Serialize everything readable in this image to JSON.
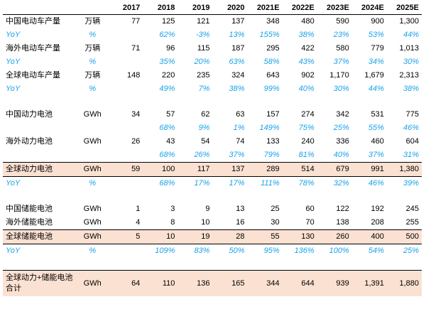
{
  "years": [
    "2017",
    "2018",
    "2019",
    "2020",
    "2021E",
    "2022E",
    "2023E",
    "2024E",
    "2025E"
  ],
  "rows": [
    {
      "type": "val",
      "name": "中国电动车产量",
      "unit": "万辆",
      "values": [
        "77",
        "125",
        "121",
        "137",
        "348",
        "480",
        "590",
        "900",
        "1,300"
      ]
    },
    {
      "type": "yoy",
      "name": "YoY",
      "unit": "%",
      "values": [
        "",
        "62%",
        "-3%",
        "13%",
        "155%",
        "38%",
        "23%",
        "53%",
        "44%"
      ]
    },
    {
      "type": "val",
      "name": "海外电动车产量",
      "unit": "万辆",
      "values": [
        "71",
        "96",
        "115",
        "187",
        "295",
        "422",
        "580",
        "779",
        "1,013"
      ]
    },
    {
      "type": "yoy",
      "name": "YoY",
      "unit": "%",
      "values": [
        "",
        "35%",
        "20%",
        "63%",
        "58%",
        "43%",
        "37%",
        "34%",
        "30%"
      ]
    },
    {
      "type": "val",
      "name": "全球电动车产量",
      "unit": "万辆",
      "values": [
        "148",
        "220",
        "235",
        "324",
        "643",
        "902",
        "1,170",
        "1,679",
        "2,313"
      ]
    },
    {
      "type": "yoy",
      "name": "YoY",
      "unit": "%",
      "values": [
        "",
        "49%",
        "7%",
        "38%",
        "99%",
        "40%",
        "30%",
        "44%",
        "38%"
      ]
    },
    {
      "type": "gap"
    },
    {
      "type": "val",
      "name": "中国动力电池",
      "unit": "GWh",
      "values": [
        "34",
        "57",
        "62",
        "63",
        "157",
        "274",
        "342",
        "531",
        "775"
      ]
    },
    {
      "type": "yoy",
      "name": "",
      "unit": "",
      "values": [
        "",
        "68%",
        "9%",
        "1%",
        "149%",
        "75%",
        "25%",
        "55%",
        "46%"
      ]
    },
    {
      "type": "val",
      "name": "海外动力电池",
      "unit": "GWh",
      "values": [
        "26",
        "43",
        "54",
        "74",
        "133",
        "240",
        "336",
        "460",
        "604"
      ]
    },
    {
      "type": "yoy",
      "name": "",
      "unit": "",
      "values": [
        "",
        "68%",
        "26%",
        "37%",
        "79%",
        "81%",
        "40%",
        "37%",
        "31%"
      ]
    },
    {
      "type": "val",
      "name": "全球动力电池",
      "unit": "GWh",
      "highlight": true,
      "values": [
        "59",
        "100",
        "117",
        "137",
        "289",
        "514",
        "679",
        "991",
        "1,380"
      ]
    },
    {
      "type": "yoy",
      "name": "YoY",
      "unit": "%",
      "values": [
        "",
        "68%",
        "17%",
        "17%",
        "111%",
        "78%",
        "32%",
        "46%",
        "39%"
      ]
    },
    {
      "type": "gap"
    },
    {
      "type": "val",
      "name": "中国储能电池",
      "unit": "GWh",
      "values": [
        "1",
        "3",
        "9",
        "13",
        "25",
        "60",
        "122",
        "192",
        "245"
      ]
    },
    {
      "type": "val",
      "name": "海外储能电池",
      "unit": "GWh",
      "values": [
        "4",
        "8",
        "10",
        "16",
        "30",
        "70",
        "138",
        "208",
        "255"
      ]
    },
    {
      "type": "val",
      "name": "全球储能电池",
      "unit": "GWh",
      "highlight": true,
      "values": [
        "5",
        "10",
        "19",
        "28",
        "55",
        "130",
        "260",
        "400",
        "500"
      ]
    },
    {
      "type": "yoy",
      "name": "YoY",
      "unit": "%",
      "values": [
        "",
        "109%",
        "83%",
        "50%",
        "95%",
        "136%",
        "100%",
        "54%",
        "25%"
      ]
    },
    {
      "type": "gap"
    },
    {
      "type": "double",
      "name": "全球动力+储能电池合计",
      "unit": "GWh",
      "highlight": true,
      "values": [
        "64",
        "110",
        "136",
        "165",
        "344",
        "644",
        "939",
        "1,391",
        "1,880"
      ]
    }
  ]
}
